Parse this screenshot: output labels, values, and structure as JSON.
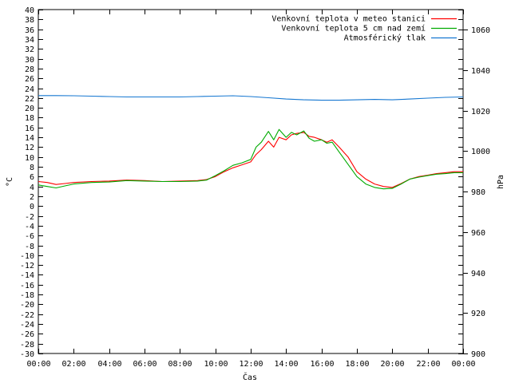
{
  "chart_data": {
    "type": "line",
    "title": "",
    "xlabel": "Čas",
    "ylabel": "°C",
    "y2label": "hPa",
    "x_ticks": [
      "00:00",
      "02:00",
      "04:00",
      "06:00",
      "08:00",
      "10:00",
      "12:00",
      "14:00",
      "16:00",
      "18:00",
      "20:00",
      "22:00",
      "00:00"
    ],
    "xlim_hours": [
      0,
      24
    ],
    "ylim": [
      -30,
      40
    ],
    "y_ticks": [
      40,
      38,
      36,
      34,
      32,
      30,
      28,
      26,
      24,
      22,
      20,
      18,
      16,
      14,
      12,
      10,
      8,
      6,
      4,
      2,
      0,
      -2,
      -4,
      -6,
      -8,
      -10,
      -12,
      -14,
      -16,
      -18,
      -20,
      -22,
      -24,
      -26,
      -28,
      -30
    ],
    "y2lim": [
      900,
      1070
    ],
    "y2_ticks": [
      1060,
      1040,
      1020,
      1000,
      980,
      960,
      940,
      920,
      900
    ],
    "grid": false,
    "legend_position": "top-right",
    "series": [
      {
        "name": "Venkovní teplota v meteo stanici",
        "axis": "left",
        "color": "#ff0000",
        "x": [
          0,
          0.5,
          1,
          1.5,
          2,
          3,
          4,
          5,
          6,
          7,
          8,
          9,
          9.5,
          10,
          10.5,
          11,
          11.5,
          12,
          12.3,
          12.6,
          13,
          13.3,
          13.6,
          14,
          14.3,
          14.6,
          15,
          15.3,
          15.6,
          16,
          16.3,
          16.6,
          17,
          17.5,
          18,
          18.5,
          19,
          19.5,
          20,
          20.5,
          21,
          21.5,
          22,
          22.5,
          23,
          23.5,
          24
        ],
        "values": [
          5.0,
          4.8,
          4.4,
          4.6,
          4.8,
          5.0,
          5.1,
          5.3,
          5.2,
          5.0,
          5.1,
          5.2,
          5.4,
          6.0,
          7.0,
          7.8,
          8.4,
          9.0,
          10.5,
          11.5,
          13.2,
          12.0,
          14.0,
          13.5,
          14.5,
          14.8,
          15.0,
          14.2,
          14.0,
          13.5,
          13.0,
          13.5,
          12.0,
          10.0,
          7.0,
          5.5,
          4.5,
          4.0,
          3.8,
          4.6,
          5.5,
          6.0,
          6.3,
          6.6,
          6.8,
          7.0,
          7.0
        ]
      },
      {
        "name": "Venkovní teplota 5 cm nad zemí",
        "axis": "left",
        "color": "#00aa00",
        "x": [
          0,
          0.5,
          1,
          1.5,
          2,
          3,
          4,
          5,
          6,
          7,
          8,
          9,
          9.5,
          10,
          10.5,
          11,
          11.5,
          12,
          12.3,
          12.6,
          13,
          13.3,
          13.6,
          14,
          14.3,
          14.6,
          15,
          15.3,
          15.6,
          16,
          16.3,
          16.6,
          17,
          17.5,
          18,
          18.5,
          19,
          19.5,
          20,
          20.5,
          21,
          21.5,
          22,
          22.5,
          23,
          23.5,
          24
        ],
        "values": [
          4.3,
          4.0,
          3.7,
          4.1,
          4.5,
          4.8,
          4.9,
          5.2,
          5.1,
          5.0,
          5.0,
          5.1,
          5.3,
          6.2,
          7.2,
          8.3,
          8.8,
          9.5,
          12.0,
          13.0,
          15.2,
          13.5,
          15.6,
          14.0,
          15.0,
          14.5,
          15.3,
          13.8,
          13.2,
          13.5,
          12.8,
          13.0,
          11.0,
          8.5,
          6.0,
          4.5,
          3.8,
          3.5,
          3.6,
          4.5,
          5.5,
          5.9,
          6.2,
          6.5,
          6.6,
          6.8,
          6.8
        ]
      },
      {
        "name": "Atmosférický tlak",
        "axis": "right",
        "color": "#1577d1",
        "x": [
          0,
          1,
          2,
          3,
          4,
          5,
          6,
          7,
          8,
          9,
          10,
          11,
          12,
          13,
          14,
          15,
          16,
          17,
          18,
          19,
          20,
          21,
          22,
          23,
          24
        ],
        "values": [
          1027.5,
          1027.5,
          1027.4,
          1027.2,
          1027.0,
          1026.8,
          1026.8,
          1026.8,
          1026.8,
          1027.0,
          1027.2,
          1027.4,
          1027.0,
          1026.4,
          1025.8,
          1025.4,
          1025.2,
          1025.2,
          1025.4,
          1025.6,
          1025.4,
          1025.8,
          1026.2,
          1026.6,
          1026.8
        ]
      }
    ]
  }
}
